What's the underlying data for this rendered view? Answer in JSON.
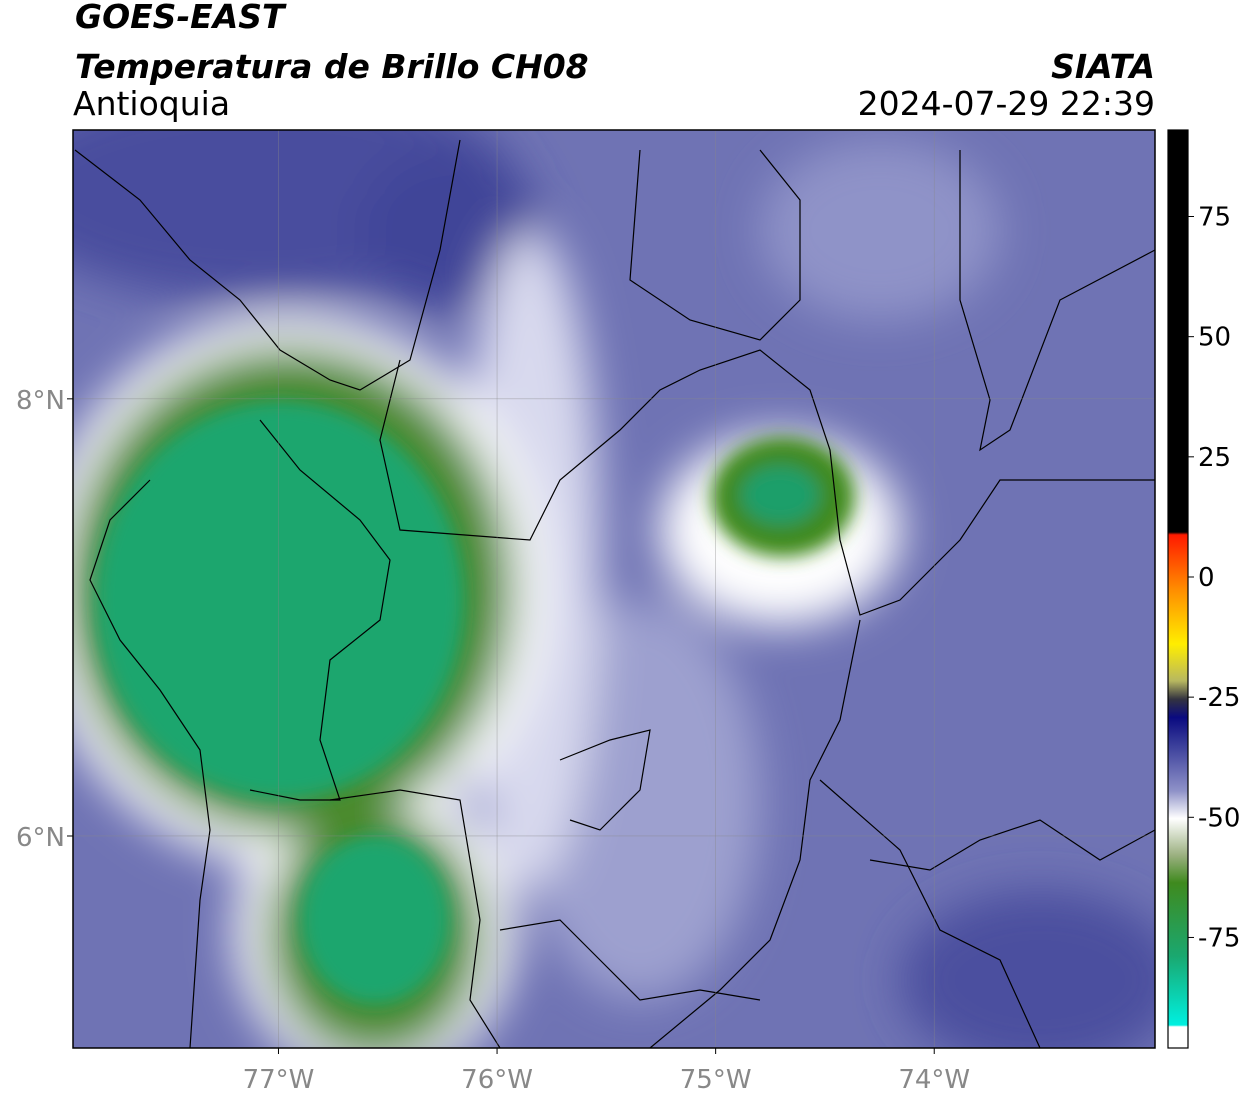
{
  "header": {
    "title": "GOES-EAST",
    "subtitle": "Temperatura de Brillo CH08",
    "region": "Antioquia",
    "source": "SIATA",
    "timestamp": "2024-07-29 22:39"
  },
  "map": {
    "xlim": [
      -77.94,
      -72.99
    ],
    "ylim": [
      5.03,
      9.23
    ],
    "lon_ticks": [
      {
        "value": -77,
        "label": "77°W"
      },
      {
        "value": -76,
        "label": "76°W"
      },
      {
        "value": -75,
        "label": "75°W"
      },
      {
        "value": -74,
        "label": "74°W"
      }
    ],
    "lat_ticks": [
      {
        "value": 8,
        "label": "8°N"
      },
      {
        "value": 6,
        "label": "6°N"
      }
    ]
  },
  "colorbar": {
    "lim": [
      -98,
      93
    ],
    "ticks": [
      75,
      50,
      25,
      0,
      -25,
      -50,
      -75
    ]
  }
}
